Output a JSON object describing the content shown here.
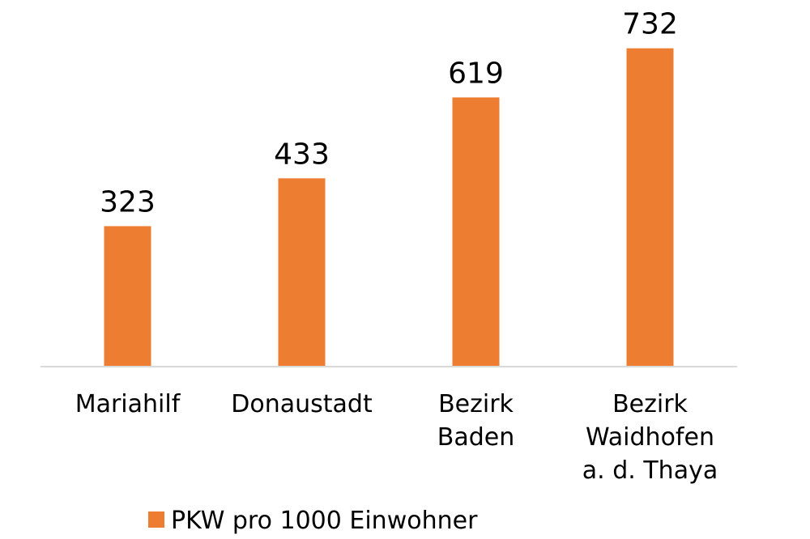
{
  "chart_data": {
    "type": "bar",
    "categories": [
      [
        "Mariahilf"
      ],
      [
        "Donaustadt"
      ],
      [
        "Bezirk",
        "Baden"
      ],
      [
        "Bezirk",
        "Waidhofen",
        "a. d. Thaya"
      ]
    ],
    "series": [
      {
        "name": "PKW pro 1000 Einwohner",
        "values": [
          323,
          433,
          619,
          732
        ],
        "color": "#ED7D31"
      }
    ],
    "data_labels": [
      "323",
      "433",
      "619",
      "732"
    ],
    "ylim": [
      0,
      750
    ],
    "axis_color": "#D9D9D9",
    "grid": false,
    "legend_position": "bottom"
  }
}
